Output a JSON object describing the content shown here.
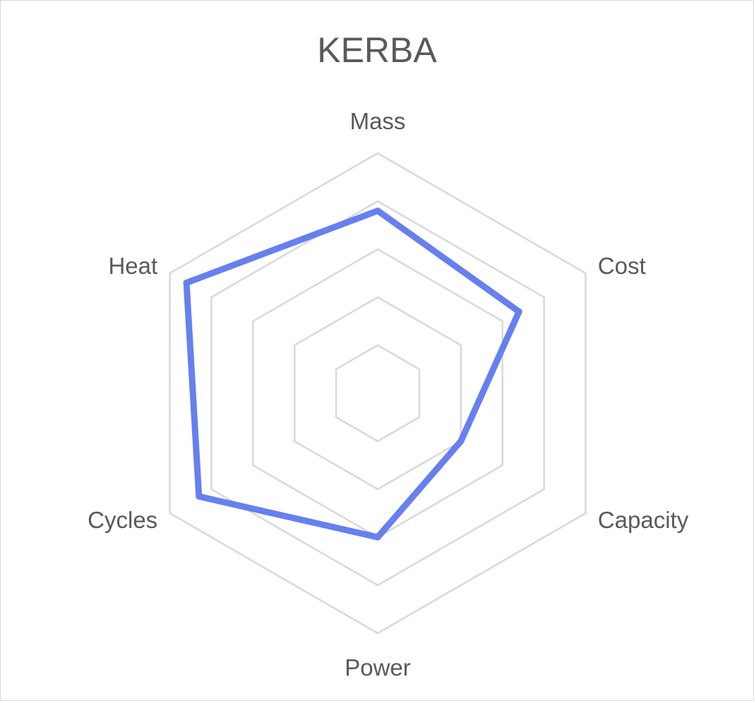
{
  "chart_data": {
    "type": "radar",
    "title": "KERBA",
    "categories": [
      "Mass",
      "Cost",
      "Capacity",
      "Power",
      "Cycles",
      "Heat"
    ],
    "series": [
      {
        "values": [
          3.8,
          3.4,
          2.0,
          3.0,
          4.3,
          4.6
        ]
      }
    ],
    "rlim": [
      0,
      5
    ],
    "grid_levels": 5,
    "legend": "none",
    "colors": {
      "series": "#6680f0",
      "grid": "#d9d9d9",
      "text": "#595959"
    }
  }
}
